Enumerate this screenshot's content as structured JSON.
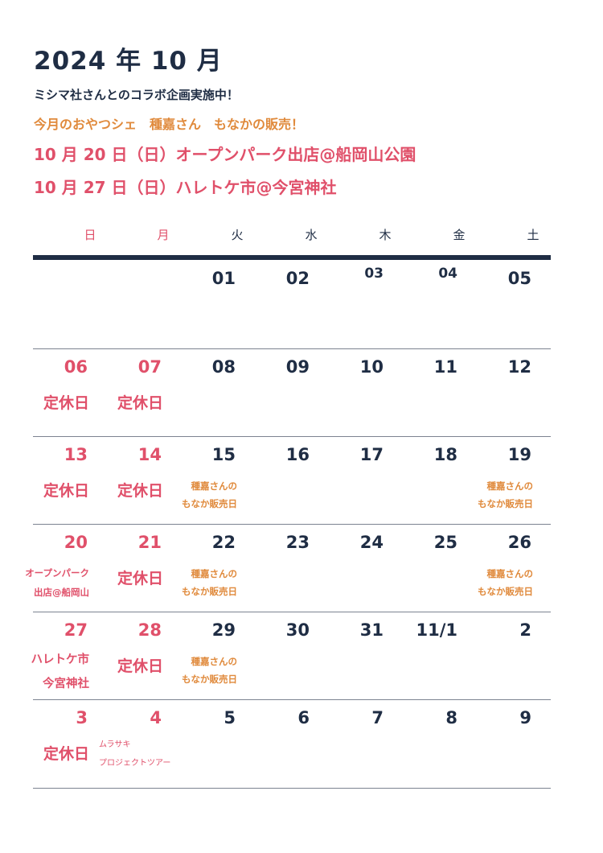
{
  "header": {
    "title": "2024 年 10 月",
    "line1": "ミシマ社さんとのコラボ企画実施中！",
    "line2": "今月のおやつシェ　種嘉さん　もなかの販売！",
    "line3": "10 月 20 日（日）オープンパーク出店@船岡山公園",
    "line4": "10 月 27 日（日）ハレトケ市@今宮神社"
  },
  "weekdays": [
    "日",
    "月",
    "火",
    "水",
    "木",
    "金",
    "土"
  ],
  "colors": {
    "navy": "#1f2d44",
    "red": "#e0506a",
    "orange": "#e08a3c"
  },
  "weeks": [
    {
      "days": [
        {
          "date": "",
          "closed": "",
          "note": []
        },
        {
          "date": "",
          "closed": "",
          "note": []
        },
        {
          "date": "01",
          "note": []
        },
        {
          "date": "02",
          "note": []
        },
        {
          "date": "03",
          "note": []
        },
        {
          "date": "04",
          "note": []
        },
        {
          "date": "05",
          "note": []
        }
      ]
    },
    {
      "days": [
        {
          "date": "06",
          "closed": "定休日"
        },
        {
          "date": "07",
          "closed": "定休日"
        },
        {
          "date": "08"
        },
        {
          "date": "09"
        },
        {
          "date": "10"
        },
        {
          "date": "11"
        },
        {
          "date": "12"
        }
      ]
    },
    {
      "days": [
        {
          "date": "13",
          "closed": "定休日"
        },
        {
          "date": "14",
          "closed": "定休日"
        },
        {
          "date": "15",
          "note": [
            "種嘉さんの",
            "もなか販売日"
          ]
        },
        {
          "date": "16"
        },
        {
          "date": "17"
        },
        {
          "date": "18"
        },
        {
          "date": "19",
          "note": [
            "種嘉さんの",
            "もなか販売日"
          ]
        }
      ]
    },
    {
      "days": [
        {
          "date": "20",
          "event": [
            "オープンパーク",
            "出店@船岡山"
          ]
        },
        {
          "date": "21",
          "closed": "定休日"
        },
        {
          "date": "22",
          "note": [
            "種嘉さんの",
            "もなか販売日"
          ]
        },
        {
          "date": "23"
        },
        {
          "date": "24"
        },
        {
          "date": "25"
        },
        {
          "date": "26",
          "note": [
            "種嘉さんの",
            "もなか販売日"
          ]
        }
      ]
    },
    {
      "days": [
        {
          "date": "27",
          "event": [
            "ハレトケ市",
            "今宮神社"
          ]
        },
        {
          "date": "28",
          "closed": "定休日"
        },
        {
          "date": "29",
          "note": [
            "種嘉さんの",
            "もなか販売日"
          ]
        },
        {
          "date": "30"
        },
        {
          "date": "31"
        },
        {
          "date": "11/1"
        },
        {
          "date": "2"
        }
      ]
    },
    {
      "days": [
        {
          "date": "3",
          "closed": "定休日"
        },
        {
          "date": "4",
          "tour": [
            "ムラサキ",
            "プロジェクトツアー"
          ]
        },
        {
          "date": "5"
        },
        {
          "date": "6"
        },
        {
          "date": "7"
        },
        {
          "date": "8"
        },
        {
          "date": "9"
        }
      ]
    }
  ]
}
